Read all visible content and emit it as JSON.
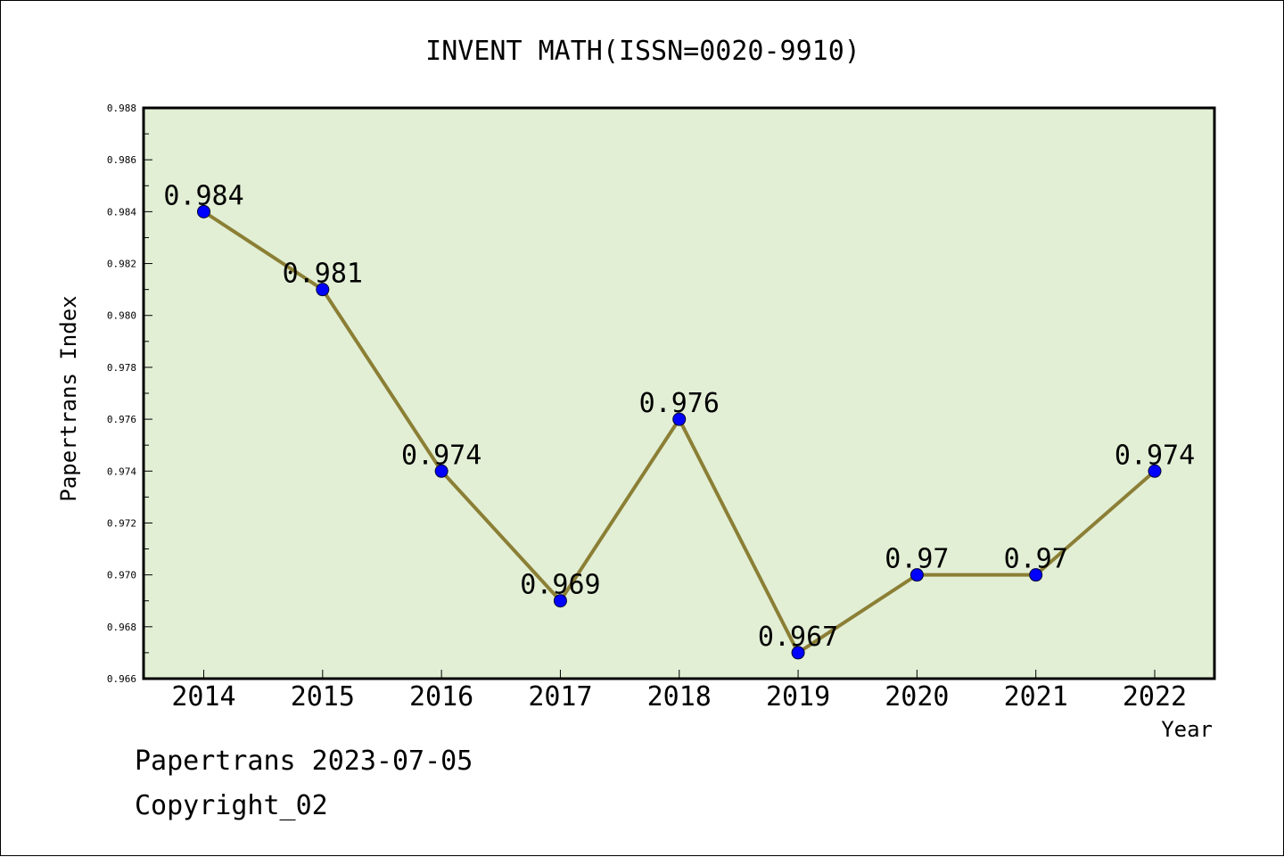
{
  "chart_data": {
    "type": "line",
    "title": "INVENT MATH(ISSN=0020-9910)",
    "xlabel": "Year",
    "ylabel": "Papertrans Index",
    "categories": [
      "2014",
      "2015",
      "2016",
      "2017",
      "2018",
      "2019",
      "2020",
      "2021",
      "2022"
    ],
    "values": [
      0.984,
      0.981,
      0.974,
      0.969,
      0.976,
      0.967,
      0.97,
      0.97,
      0.974
    ],
    "data_labels": [
      "0.984",
      "0.981",
      "0.974",
      "0.969",
      "0.976",
      "0.967",
      "0.97",
      "0.97",
      "0.974"
    ],
    "ylim": [
      0.966,
      0.988
    ],
    "yticks": [
      0.966,
      0.968,
      0.97,
      0.972,
      0.974,
      0.976,
      0.978,
      0.98,
      0.982,
      0.984,
      0.986,
      0.988
    ],
    "ytick_labels": [
      "0.966",
      "0.968",
      "0.970",
      "0.972",
      "0.974",
      "0.976",
      "0.978",
      "0.980",
      "0.982",
      "0.984",
      "0.986",
      "0.988"
    ],
    "grid": false,
    "colors": {
      "plot_background": "#e2efd5",
      "line": "#8b7f35",
      "marker": "#0000ff"
    }
  },
  "footer": {
    "line1": "Papertrans 2023-07-05",
    "line2": "Copyright_02"
  }
}
